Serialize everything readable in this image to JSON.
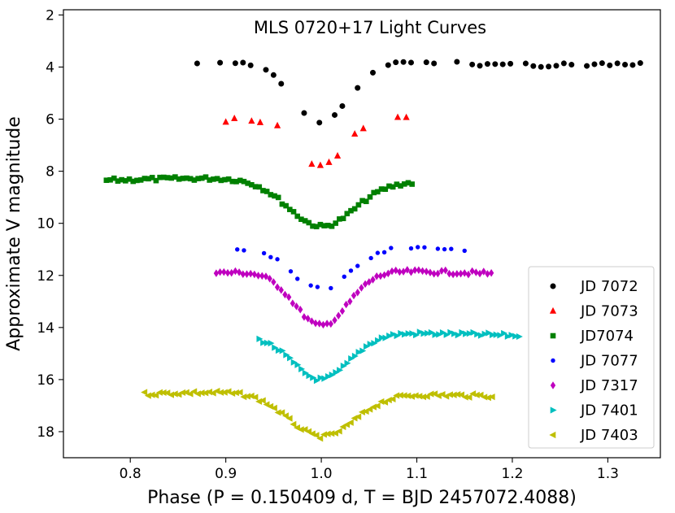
{
  "chart_data": {
    "type": "scatter",
    "title": "MLS 0720+17 Light Curves",
    "xlabel": "Phase (P = 0.150409 d, T = BJD 2457072.4088)",
    "ylabel": "Approximate V magnitude",
    "xlim": [
      0.73,
      1.355
    ],
    "ylim": [
      19.0,
      1.8
    ],
    "y_inverted": true,
    "grid": false,
    "legend_position": "lower-right",
    "x_ticks": [
      0.8,
      0.9,
      1.0,
      1.1,
      1.2,
      1.3
    ],
    "x_tick_labels": [
      "0.8",
      "0.9",
      "1.0",
      "1.1",
      "1.2",
      "1.3"
    ],
    "y_ticks": [
      2,
      4,
      6,
      8,
      10,
      12,
      14,
      16,
      18
    ],
    "y_tick_labels": [
      "2",
      "4",
      "6",
      "8",
      "10",
      "12",
      "14",
      "16",
      "18"
    ],
    "series": [
      {
        "name": "JD 7072",
        "color": "#000000",
        "marker": "circle",
        "x_min": 0.87,
        "x_max": 1.335,
        "baseline": 3.85,
        "depth": 2.3,
        "width": 0.03,
        "step": 0.008
      },
      {
        "name": "JD 7073",
        "color": "#ff0000",
        "marker": "triangle-up",
        "x_min": 0.9,
        "x_max": 1.095,
        "baseline": 6.05,
        "depth": 1.85,
        "width": 0.024,
        "step": 0.009
      },
      {
        "name": "JD7074",
        "color": "#008000",
        "marker": "square",
        "x_min": 0.775,
        "x_max": 1.095,
        "baseline": 8.35,
        "depth": 1.8,
        "width": 0.035,
        "step": 0.004
      },
      {
        "name": "JD 7077",
        "color": "#0000ff",
        "marker": "circle-small",
        "x_min": 0.905,
        "x_max": 1.15,
        "baseline": 11.0,
        "depth": 1.6,
        "width": 0.03,
        "step": 0.007
      },
      {
        "name": "JD 7317",
        "color": "#bf00bf",
        "marker": "diamond",
        "x_min": 0.89,
        "x_max": 1.18,
        "baseline": 11.9,
        "depth": 2.1,
        "width": 0.028,
        "step": 0.004
      },
      {
        "name": "JD 7401",
        "color": "#00bfbf",
        "marker": "triangle-right",
        "x_min": 0.935,
        "x_max": 1.21,
        "baseline": 14.3,
        "depth": 1.75,
        "width": 0.03,
        "step": 0.004
      },
      {
        "name": "JD 7403",
        "color": "#bfbf00",
        "marker": "triangle-left",
        "x_min": 0.815,
        "x_max": 1.18,
        "baseline": 16.55,
        "depth": 1.7,
        "width": 0.035,
        "step": 0.004
      }
    ]
  }
}
